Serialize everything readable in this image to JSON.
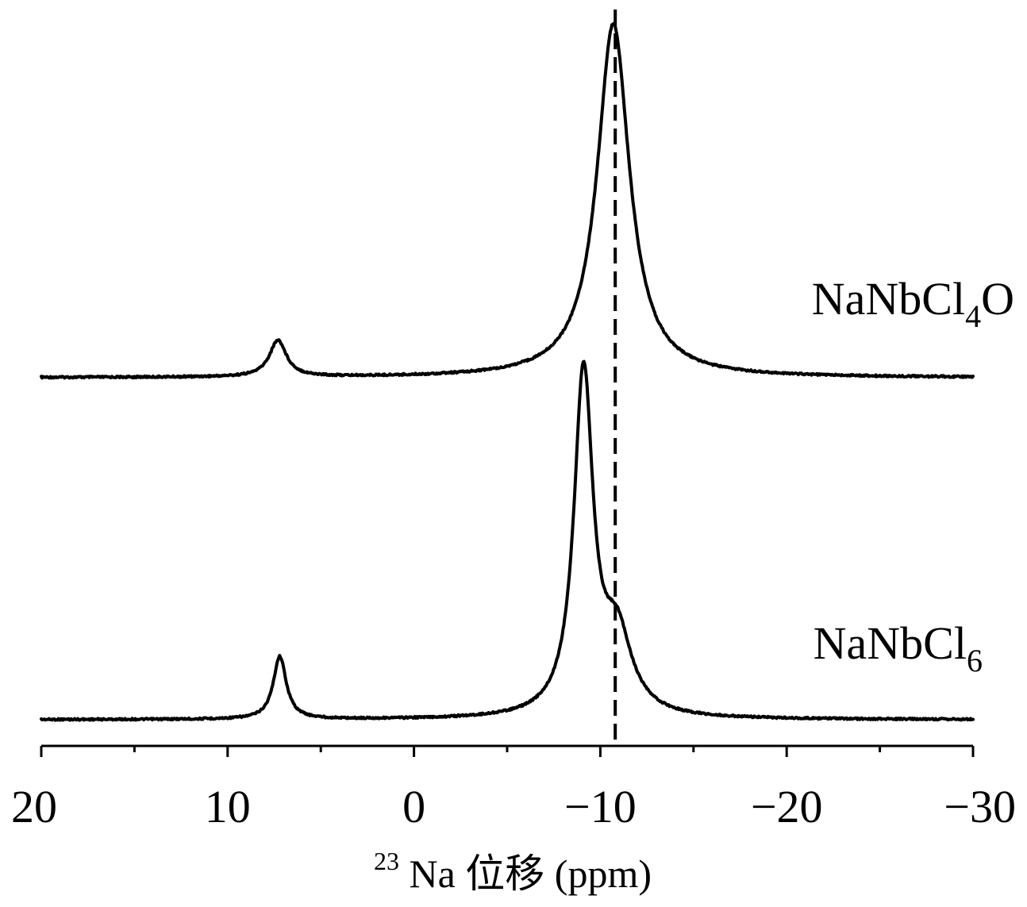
{
  "chart_data": {
    "type": "line",
    "xlabel": {
      "superscript": "23",
      "text": "Na 位移 (ppm)"
    },
    "xlim": [
      20,
      -30
    ],
    "reversed_x": true,
    "x_major_ticks": [
      20,
      10,
      0,
      -10,
      -20,
      -30
    ],
    "x_minor_ticks": [
      15,
      5,
      -5,
      -15,
      -25
    ],
    "tick_labels": [
      "20",
      "10",
      "0",
      "−10",
      "−20",
      "−30"
    ],
    "reference_line": {
      "x": -10.8,
      "style": "dashed"
    },
    "series": [
      {
        "name": "NaNbCl4O",
        "label_main": "NaNbCl",
        "label_sub": "4",
        "label_tail": "O",
        "peaks": [
          {
            "x": 7.3,
            "height": 0.1,
            "width": 0.55
          },
          {
            "x": -10.7,
            "height": 0.97,
            "width": 1.05
          }
        ]
      },
      {
        "name": "NaNbCl6",
        "label_main": "NaNbCl",
        "label_sub": "6",
        "label_tail": "",
        "peaks": [
          {
            "x": 7.2,
            "height": 0.18,
            "width": 0.42
          },
          {
            "x": -9.1,
            "height": 0.98,
            "width": 0.62
          },
          {
            "x": -10.9,
            "height": 0.22,
            "width": 0.95
          }
        ]
      }
    ]
  }
}
